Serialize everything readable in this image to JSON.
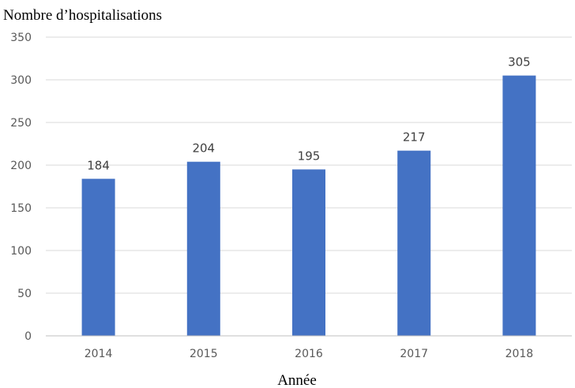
{
  "chart_data": {
    "type": "bar",
    "ylabel": "Nombre d’hospitalisations",
    "xlabel": "Année",
    "categories": [
      "2014",
      "2015",
      "2016",
      "2017",
      "2018"
    ],
    "values": [
      184,
      204,
      195,
      217,
      305
    ],
    "ylim": [
      0,
      350
    ],
    "yticks": [
      0,
      50,
      100,
      150,
      200,
      250,
      300,
      350
    ],
    "grid": true,
    "bar_color": "#4472c4",
    "data_labels": true
  }
}
